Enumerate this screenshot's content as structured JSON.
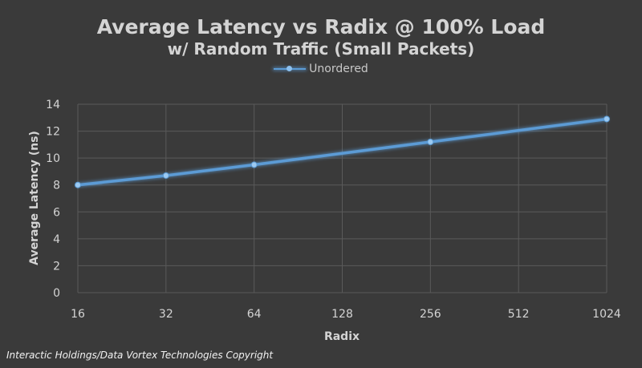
{
  "chart_data": {
    "type": "line",
    "title": "Average Latency vs Radix @ 100% Load",
    "subtitle": "w/ Random Traffic (Small Packets)",
    "xlabel": "Radix",
    "ylabel": "Average Latency (ns)",
    "x_scale": "log2",
    "categories": [
      "16",
      "32",
      "64",
      "128",
      "256",
      "512",
      "1024"
    ],
    "ylim": [
      0,
      14
    ],
    "yticks": [
      "0",
      "2",
      "4",
      "6",
      "8",
      "10",
      "12",
      "14"
    ],
    "grid": true,
    "legend_position": "top",
    "series": [
      {
        "name": "Unordered",
        "color": "#5b9bd5",
        "points": [
          {
            "x": 16,
            "y": 8.0
          },
          {
            "x": 32,
            "y": 8.7
          },
          {
            "x": 64,
            "y": 9.5
          },
          {
            "x": 256,
            "y": 11.2
          },
          {
            "x": 1024,
            "y": 12.9
          }
        ]
      }
    ]
  },
  "footer": {
    "copyright": "Interactic Holdings/Data Vortex Technologies Copyright"
  },
  "colors": {
    "background": "#3a3a3a",
    "gridline": "#5a5a5a",
    "text": "#d4d4d4",
    "series": "#5b9bd5"
  }
}
